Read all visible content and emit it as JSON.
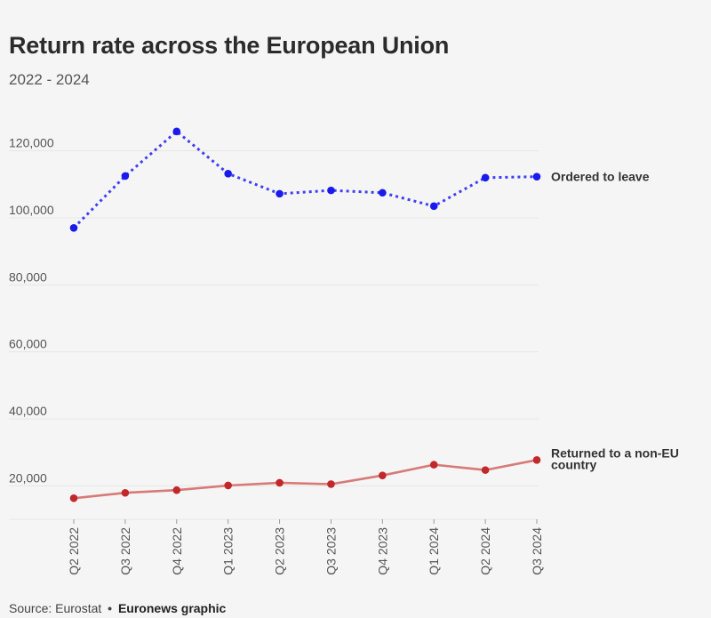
{
  "title": "Return rate across the European Union",
  "subtitle": "2022 - 2024",
  "source": {
    "label": "Source: Eurostat",
    "separator": "•",
    "brand": "Euronews graphic"
  },
  "chart_data": {
    "type": "line",
    "title": "Return rate across the European Union",
    "subtitle": "2022 - 2024",
    "xlabel": "",
    "ylabel": "",
    "categories": [
      "Q2 2022",
      "Q3 2022",
      "Q4 2022",
      "Q1 2023",
      "Q2 2023",
      "Q3 2023",
      "Q4 2023",
      "Q1 2024",
      "Q2 2024",
      "Q3 2024"
    ],
    "yticks": [
      20000,
      40000,
      60000,
      80000,
      100000,
      120000
    ],
    "ytick_labels": [
      "20,000",
      "40,000",
      "60,000",
      "80,000",
      "100,000",
      "120,000"
    ],
    "ylim": [
      10000,
      130000
    ],
    "grid": true,
    "legend": "direct labels at line ends (right)",
    "series": [
      {
        "name": "Ordered to leave",
        "color": "#3f3ff5",
        "marker_color": "#1a1aee",
        "style": "dotted",
        "values": [
          97000,
          112500,
          125800,
          113200,
          107200,
          108200,
          107500,
          103500,
          112000,
          112300
        ]
      },
      {
        "name": "Returned to a non-EU country",
        "label_lines": [
          "Returned to a non-EU",
          "country"
        ],
        "color": "#d77a78",
        "marker_color": "#c0282a",
        "style": "solid",
        "values": [
          16300,
          17900,
          18700,
          20100,
          20900,
          20500,
          23100,
          26300,
          24700,
          27700
        ]
      }
    ]
  }
}
